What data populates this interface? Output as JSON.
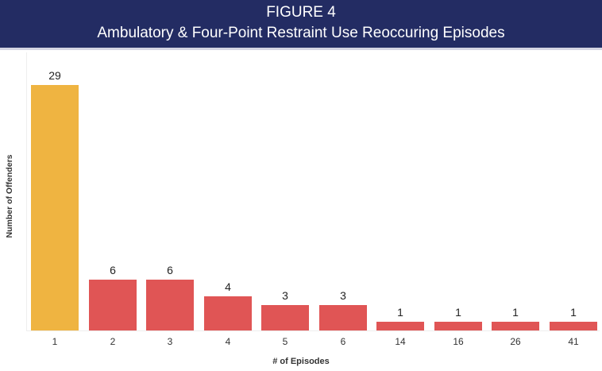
{
  "header": {
    "figure_label": "FIGURE 4",
    "title": "Ambulatory & Four-Point Restraint Use Reoccuring Episodes"
  },
  "colors": {
    "header_bg": "#232c63",
    "highlight_bar": "#efb441",
    "bar": "#e05555"
  },
  "chart_data": {
    "type": "bar",
    "title": "Ambulatory & Four-Point Restraint Use Reoccuring Episodes",
    "subtitle": "FIGURE 4",
    "xlabel": "# of Episodes",
    "ylabel": "Number of Offenders",
    "categories": [
      "1",
      "2",
      "3",
      "4",
      "5",
      "6",
      "14",
      "16",
      "26",
      "41"
    ],
    "values": [
      29,
      6,
      6,
      4,
      3,
      3,
      1,
      1,
      1,
      1
    ],
    "value_labels": [
      "29",
      "6",
      "6",
      "4",
      "3",
      "3",
      "1",
      "1",
      "1",
      "1"
    ],
    "bar_colors": [
      "#efb441",
      "#e05555",
      "#e05555",
      "#e05555",
      "#e05555",
      "#e05555",
      "#e05555",
      "#e05555",
      "#e05555",
      "#e05555"
    ],
    "ylim": [
      0,
      32
    ],
    "grid": false,
    "legend": null,
    "data_labels": true
  }
}
